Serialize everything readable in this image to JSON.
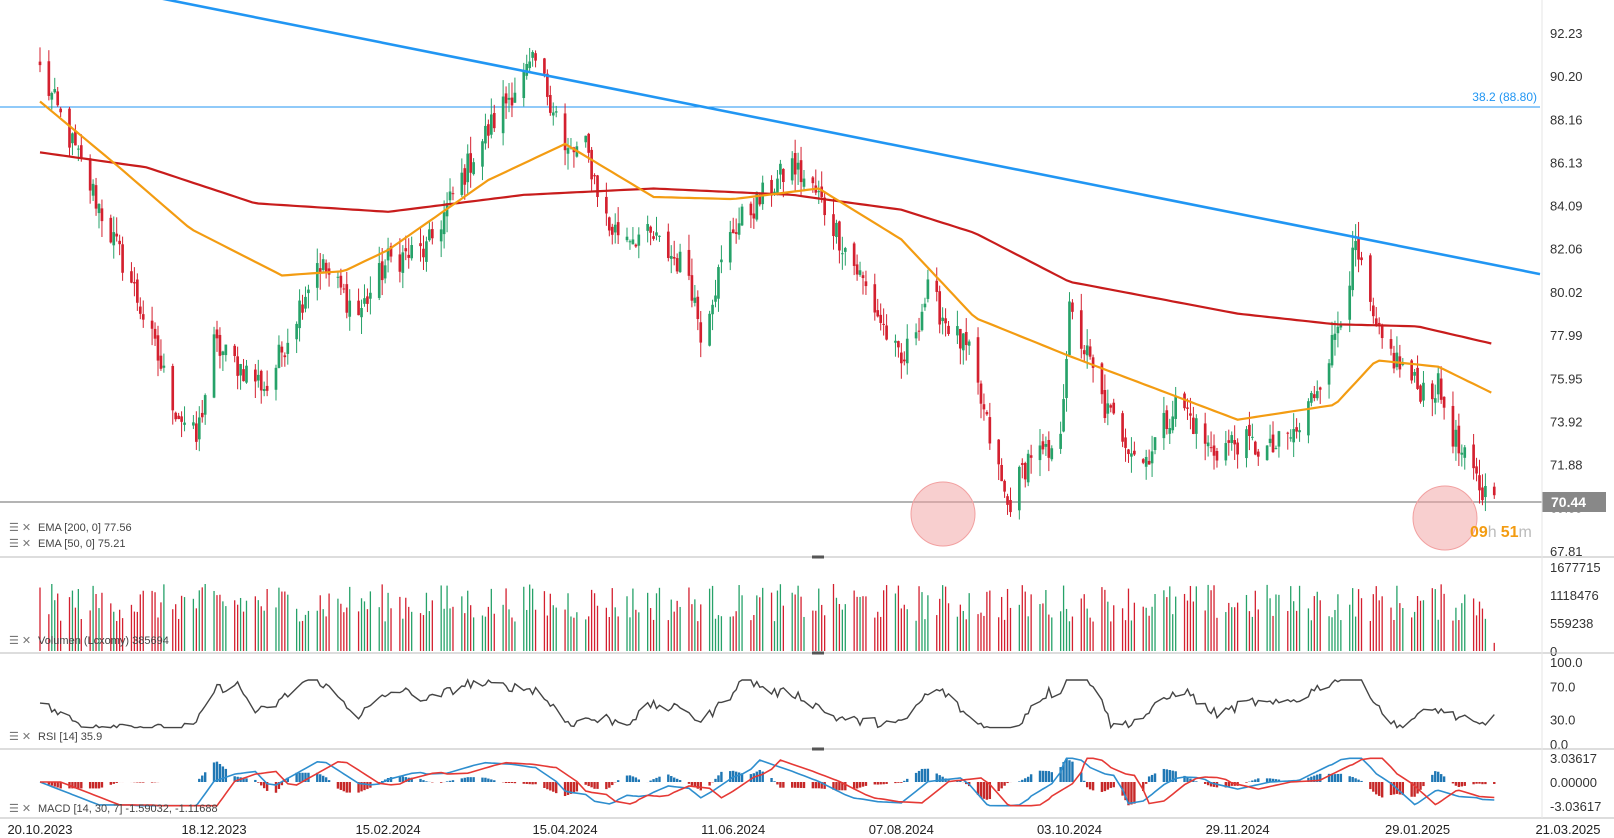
{
  "chart_data": {
    "type": "candlestick",
    "price_axis": {
      "ticks": [
        "92.23",
        "90.20",
        "88.16",
        "86.13",
        "84.09",
        "82.06",
        "80.02",
        "77.99",
        "75.95",
        "73.92",
        "71.88",
        "69.85",
        "67.81"
      ],
      "min": 67.81,
      "max": 92.23
    },
    "date_axis": {
      "ticks": [
        "20.10.2023",
        "18.12.2023",
        "15.02.2024",
        "15.04.2024",
        "11.06.2024",
        "07.08.2024",
        "03.10.2024",
        "29.11.2024",
        "29.01.2025",
        "21.03.2025"
      ]
    },
    "fib_level": {
      "label": "38.2 (88.80)",
      "value": 88.8
    },
    "current_price": {
      "label": "70.44",
      "value": 70.44
    },
    "countdown": {
      "hours": "09",
      "h_unit": "h",
      "minutes": "51",
      "m_unit": "m"
    },
    "trendline": {
      "from": {
        "date": "20.10.2023",
        "value": 95.0
      },
      "to": {
        "date": "21.03.2025",
        "value": 80.6
      }
    },
    "price_anchors": [
      [
        "20.10.2023",
        90.5
      ],
      [
        "03.11.2023",
        86.0
      ],
      [
        "20.11.2023",
        80.5
      ],
      [
        "05.12.2023",
        74.5
      ],
      [
        "12.12.2023",
        73.0
      ],
      [
        "18.12.2023",
        77.5
      ],
      [
        "05.01.2024",
        75.5
      ],
      [
        "22.01.2024",
        81.5
      ],
      [
        "05.02.2024",
        79.0
      ],
      [
        "15.02.2024",
        81.5
      ],
      [
        "28.02.2024",
        82.0
      ],
      [
        "15.03.2024",
        86.5
      ],
      [
        "28.03.2024",
        89.5
      ],
      [
        "05.04.2024",
        90.8
      ],
      [
        "12.04.2024",
        88.5
      ],
      [
        "15.04.2024",
        86.5
      ],
      [
        "22.04.2024",
        86.8
      ],
      [
        "30.04.2024",
        83.0
      ],
      [
        "15.05.2024",
        82.5
      ],
      [
        "27.05.2024",
        81.0
      ],
      [
        "31.05.2024",
        78.2
      ],
      [
        "11.06.2024",
        83.0
      ],
      [
        "01.07.2024",
        86.0
      ],
      [
        "10.07.2024",
        84.5
      ],
      [
        "25.07.2024",
        80.5
      ],
      [
        "07.08.2024",
        76.5
      ],
      [
        "16.08.2024",
        80.0
      ],
      [
        "30.08.2024",
        77.0
      ],
      [
        "09.09.2024",
        71.5
      ],
      [
        "12.09.2024",
        69.9
      ],
      [
        "20.09.2024",
        72.5
      ],
      [
        "29.09.2024",
        72.0
      ],
      [
        "03.10.2024",
        79.0
      ],
      [
        "09.10.2024",
        77.0
      ],
      [
        "15.10.2024",
        74.5
      ],
      [
        "28.10.2024",
        72.0
      ],
      [
        "09.11.2024",
        75.0
      ],
      [
        "20.11.2024",
        72.5
      ],
      [
        "29.11.2024",
        73.0
      ],
      [
        "10.12.2024",
        72.5
      ],
      [
        "20.12.2024",
        73.5
      ],
      [
        "31.12.2024",
        77.5
      ],
      [
        "08.01.2025",
        82.0
      ],
      [
        "15.01.2025",
        78.0
      ],
      [
        "29.01.2025",
        75.5
      ],
      [
        "05.02.2025",
        75.5
      ],
      [
        "12.02.2025",
        72.5
      ],
      [
        "20.02.2025",
        70.6
      ],
      [
        "24.02.2025",
        70.44
      ]
    ],
    "ema200": {
      "label": "EMA [200, 0] 77.56",
      "anchors": [
        [
          "20.10.2023",
          86.6
        ],
        [
          "25.11.2023",
          85.9
        ],
        [
          "01.01.2024",
          84.2
        ],
        [
          "15.02.2024",
          83.8
        ],
        [
          "01.04.2024",
          84.6
        ],
        [
          "15.05.2024",
          84.9
        ],
        [
          "01.07.2024",
          84.6
        ],
        [
          "07.08.2024",
          83.9
        ],
        [
          "01.09.2024",
          82.8
        ],
        [
          "03.10.2024",
          80.5
        ],
        [
          "29.11.2024",
          79.0
        ],
        [
          "01.01.2025",
          78.5
        ],
        [
          "29.01.2025",
          78.4
        ],
        [
          "24.02.2025",
          77.56
        ]
      ]
    },
    "ema50": {
      "label": "EMA [50, 0] 75.21",
      "anchors": [
        [
          "20.10.2023",
          89.0
        ],
        [
          "15.11.2023",
          86.0
        ],
        [
          "10.12.2023",
          83.0
        ],
        [
          "10.01.2024",
          80.8
        ],
        [
          "31.01.2024",
          81.0
        ],
        [
          "15.02.2024",
          82.0
        ],
        [
          "20.03.2024",
          85.3
        ],
        [
          "15.04.2024",
          87.0
        ],
        [
          "15.05.2024",
          84.5
        ],
        [
          "11.06.2024",
          84.4
        ],
        [
          "10.07.2024",
          84.9
        ],
        [
          "07.08.2024",
          82.5
        ],
        [
          "01.09.2024",
          78.8
        ],
        [
          "03.10.2024",
          77.0
        ],
        [
          "29.11.2024",
          74.0
        ],
        [
          "01.01.2025",
          74.7
        ],
        [
          "15.01.2025",
          76.8
        ],
        [
          "05.02.2025",
          76.5
        ],
        [
          "24.02.2025",
          75.21
        ]
      ]
    },
    "volume": {
      "label": "Volumen (Lcxomy) 385694",
      "ticks": [
        "1677715",
        "1118476",
        "559238",
        "0"
      ],
      "max": 1677715
    },
    "rsi": {
      "label": "RSI [14] 35.9",
      "ticks": [
        "100.0",
        "70.0",
        "30.0",
        "0.0"
      ]
    },
    "macd": {
      "label": "MACD [14, 30, 7] -1.59032, -1.11688",
      "ticks": [
        "3.03617",
        "0.00000",
        "-3.03617"
      ]
    }
  },
  "legend": {
    "ema200_label": "EMA [200, 0] 77.56",
    "ema50_label": "EMA [50, 0] 75.21",
    "volume_label": "Volumen (Lcxomy) 385694",
    "rsi_label": "RSI [14] 35.9",
    "macd_label": "MACD [14, 30, 7] -1.59032, -1.11688"
  },
  "colors": {
    "up": "#26a269",
    "down": "#d4202f",
    "trend": "#2196f3",
    "ema200": "#c81c1c",
    "ema50": "#f39c12",
    "rsi": "#444444",
    "macd_fast": "#2e8ece",
    "macd_slow": "#e53935",
    "hist_pos": "#1f77b4",
    "hist_neg": "#c62828",
    "fib": "#2196f3",
    "circle": "#f2a0a0",
    "price_tag": "#888888"
  }
}
